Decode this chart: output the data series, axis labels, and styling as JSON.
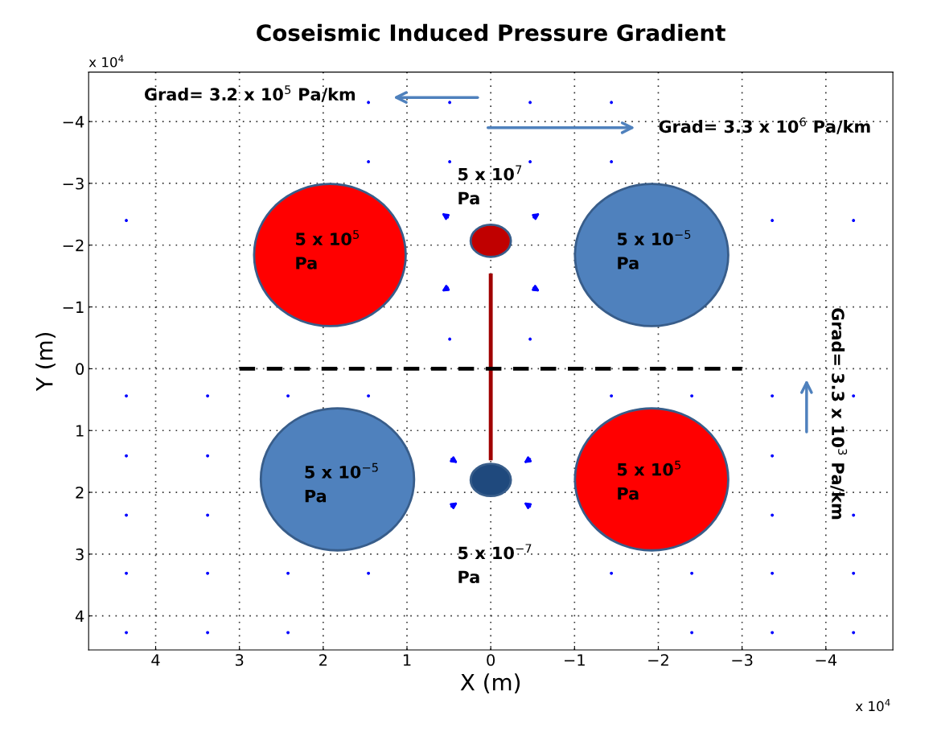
{
  "chart_data": {
    "type": "scatter",
    "title": "Coseismic Induced Pressure Gradient",
    "xlabel": "X (m)",
    "ylabel": "Y (m)",
    "xlim": [
      4.8,
      -4.8
    ],
    "ylim": [
      4.55,
      -4.8
    ],
    "xticks": [
      4,
      3,
      2,
      1,
      0,
      -1,
      -2,
      -3,
      -4
    ],
    "yticks": [
      -4,
      -3,
      -2,
      -1,
      0,
      1,
      2,
      3,
      4
    ],
    "grid": true,
    "series": [
      {
        "color": "#0000ff",
        "marker": "circle",
        "x": [
          1.46,
          0.49,
          -0.47,
          -1.44,
          1.46,
          0.49,
          -0.47,
          -1.44,
          4.35,
          -3.36,
          -4.33,
          0.49,
          -0.47,
          4.35,
          3.38,
          2.42,
          1.46,
          -1.44,
          -2.4,
          -3.36,
          -4.33,
          4.35,
          3.38,
          -3.36,
          4.35,
          3.38,
          -3.36,
          -4.33,
          4.35,
          3.38,
          2.42,
          1.46,
          -1.44,
          -2.4,
          -3.36,
          -4.33,
          4.35,
          3.38,
          2.42,
          -2.4,
          -3.36,
          -4.33
        ],
        "values": [
          -4.31,
          -4.31,
          -4.31,
          -4.31,
          -3.35,
          -3.35,
          -3.35,
          -3.35,
          -2.4,
          -2.4,
          -2.4,
          -0.48,
          -0.48,
          0.44,
          0.44,
          0.44,
          0.44,
          0.44,
          0.44,
          0.44,
          0.44,
          1.41,
          1.41,
          1.41,
          2.37,
          2.37,
          2.37,
          2.37,
          3.31,
          3.31,
          3.31,
          3.31,
          3.31,
          3.31,
          3.31,
          3.31,
          4.27,
          4.27,
          4.27,
          4.27,
          4.27,
          4.27
        ]
      },
      {
        "type": "line",
        "color": "#a00000",
        "x": [
          0,
          0
        ],
        "values": [
          -1.51,
          1.45
        ]
      },
      {
        "type": "line",
        "color": "#000000",
        "line_style": "dashed",
        "x": [
          3,
          -3
        ],
        "values": [
          0,
          0
        ]
      }
    ],
    "annotations": [
      "5 x 10$^{5}$\nPa",
      "5 x 10$^{−5}$\nPa",
      "5 x 10$^{−5}$\nPa",
      "5 x 10$^{5}$\nPa",
      "5 x 10$^{7}$\nPa",
      "5 x 10$^{−7}$\nPa",
      "Grad= 3.2 x 10$^{5}$ Pa/km",
      "Grad= 3.3 x 10$^{6}$ Pa/km",
      "Grad= 3.3 x 10$^{3}$ Pa/km",
      "x 10$^{4}$",
      "x 10$^{4}$"
    ]
  }
}
